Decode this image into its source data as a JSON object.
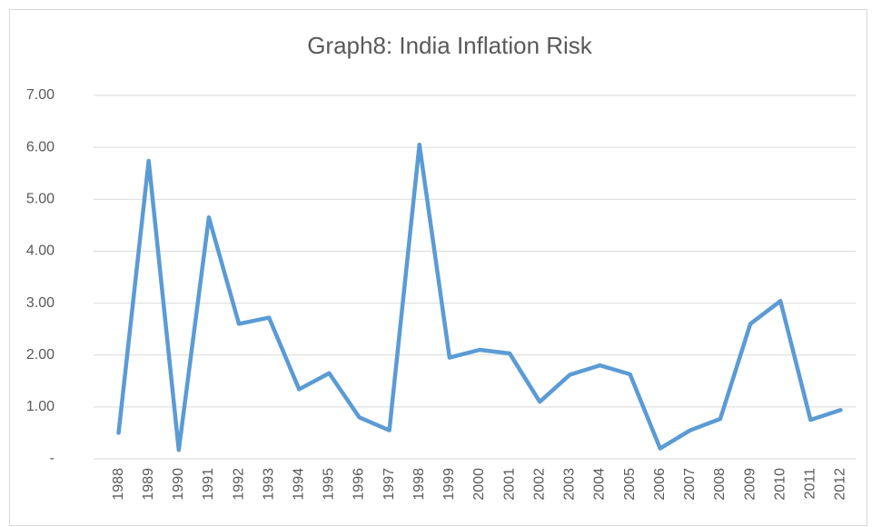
{
  "chart_data": {
    "type": "line",
    "title": "Graph8: India Inflation Risk",
    "categories": [
      "1988",
      "1989",
      "1990",
      "1991",
      "1992",
      "1993",
      "1994",
      "1995",
      "1996",
      "1997",
      "1998",
      "1999",
      "2000",
      "2001",
      "2002",
      "2003",
      "2004",
      "2005",
      "2006",
      "2007",
      "2008",
      "2009",
      "2010",
      "2011",
      "2012"
    ],
    "series": [
      {
        "name": "India Inflation Risk",
        "color": "#5b9bd5",
        "values": [
          0.5,
          5.74,
          0.17,
          4.65,
          2.6,
          2.72,
          1.34,
          1.65,
          0.8,
          0.55,
          6.05,
          1.95,
          2.1,
          2.03,
          1.1,
          1.62,
          1.8,
          1.63,
          0.2,
          0.55,
          0.77,
          2.6,
          3.04,
          0.75,
          0.94
        ]
      }
    ],
    "ylim": [
      0,
      7
    ],
    "yticks": [
      {
        "value": 0,
        "label": "-"
      },
      {
        "value": 1,
        "label": "1.00"
      },
      {
        "value": 2,
        "label": "2.00"
      },
      {
        "value": 3,
        "label": "3.00"
      },
      {
        "value": 4,
        "label": "4.00"
      },
      {
        "value": 5,
        "label": "5.00"
      },
      {
        "value": 6,
        "label": "6.00"
      },
      {
        "value": 7,
        "label": "7.00"
      }
    ],
    "grid": true
  }
}
